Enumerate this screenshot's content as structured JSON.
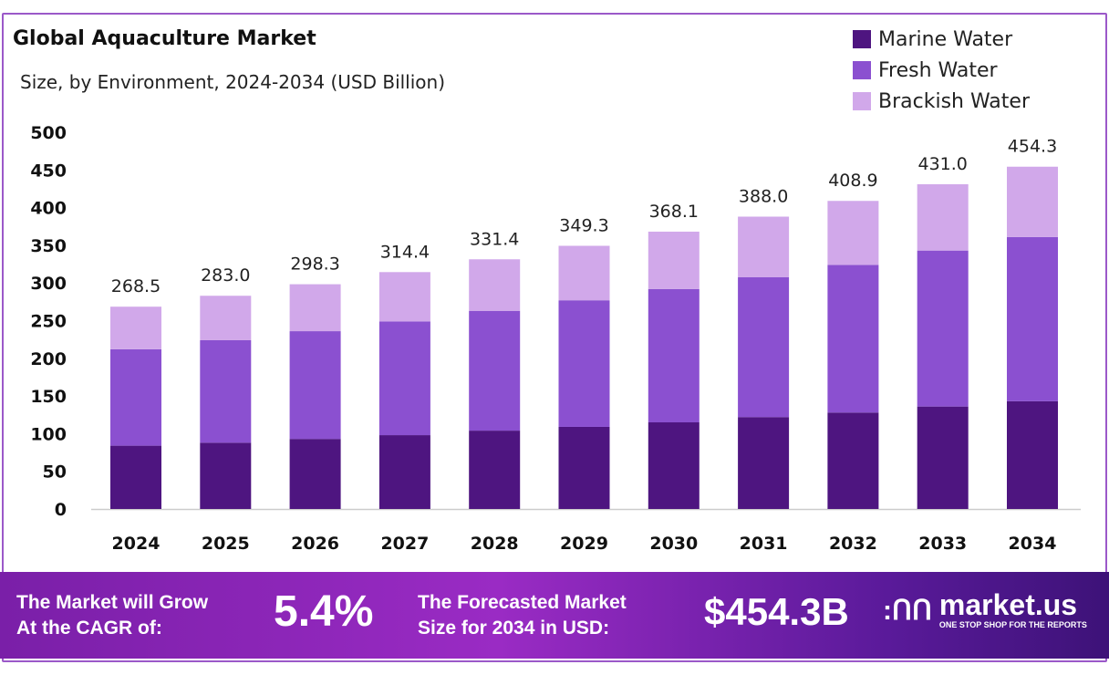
{
  "chart_data": {
    "type": "bar",
    "stacked": true,
    "title": "Global Aquaculture Market",
    "subtitle": "Size, by Environment, 2024-2034 (USD Billion)",
    "categories": [
      "2024",
      "2025",
      "2026",
      "2027",
      "2028",
      "2029",
      "2030",
      "2031",
      "2032",
      "2033",
      "2034"
    ],
    "series": [
      {
        "name": "Marine Water",
        "color": "#4e1580",
        "values": [
          84,
          88,
          93,
          98,
          104,
          109,
          115,
          122,
          128,
          136,
          143
        ]
      },
      {
        "name": "Fresh Water",
        "color": "#8b50d0",
        "values": [
          128,
          136,
          143,
          151,
          159,
          168,
          177,
          185.5,
          196,
          207,
          218
        ]
      },
      {
        "name": "Brackish Water",
        "color": "#d1a8ea",
        "values": [
          56.5,
          59,
          62.3,
          65.4,
          68.4,
          72.3,
          76.1,
          80.5,
          84.9,
          88,
          93.3
        ]
      }
    ],
    "totals": [
      "268.5",
      "283.0",
      "298.3",
      "314.4",
      "331.4",
      "349.3",
      "368.1",
      "388.0",
      "408.9",
      "431.0",
      "454.3"
    ],
    "ylim": [
      0,
      500
    ],
    "yticks": [
      "0",
      "50",
      "100",
      "150",
      "200",
      "250",
      "300",
      "350",
      "400",
      "450",
      "500"
    ],
    "legend_position": "top-right",
    "grid": false
  },
  "footer": {
    "cagr_label_1": "The Market will Grow",
    "cagr_label_2": "At the CAGR of:",
    "cagr_value": "5.4%",
    "forecast_label_1": "The Forecasted Market",
    "forecast_label_2": "Size for 2034 in USD:",
    "forecast_value": "$454.3B",
    "logo_text": "market.us",
    "logo_tagline": "ONE STOP SHOP FOR THE REPORTS"
  }
}
